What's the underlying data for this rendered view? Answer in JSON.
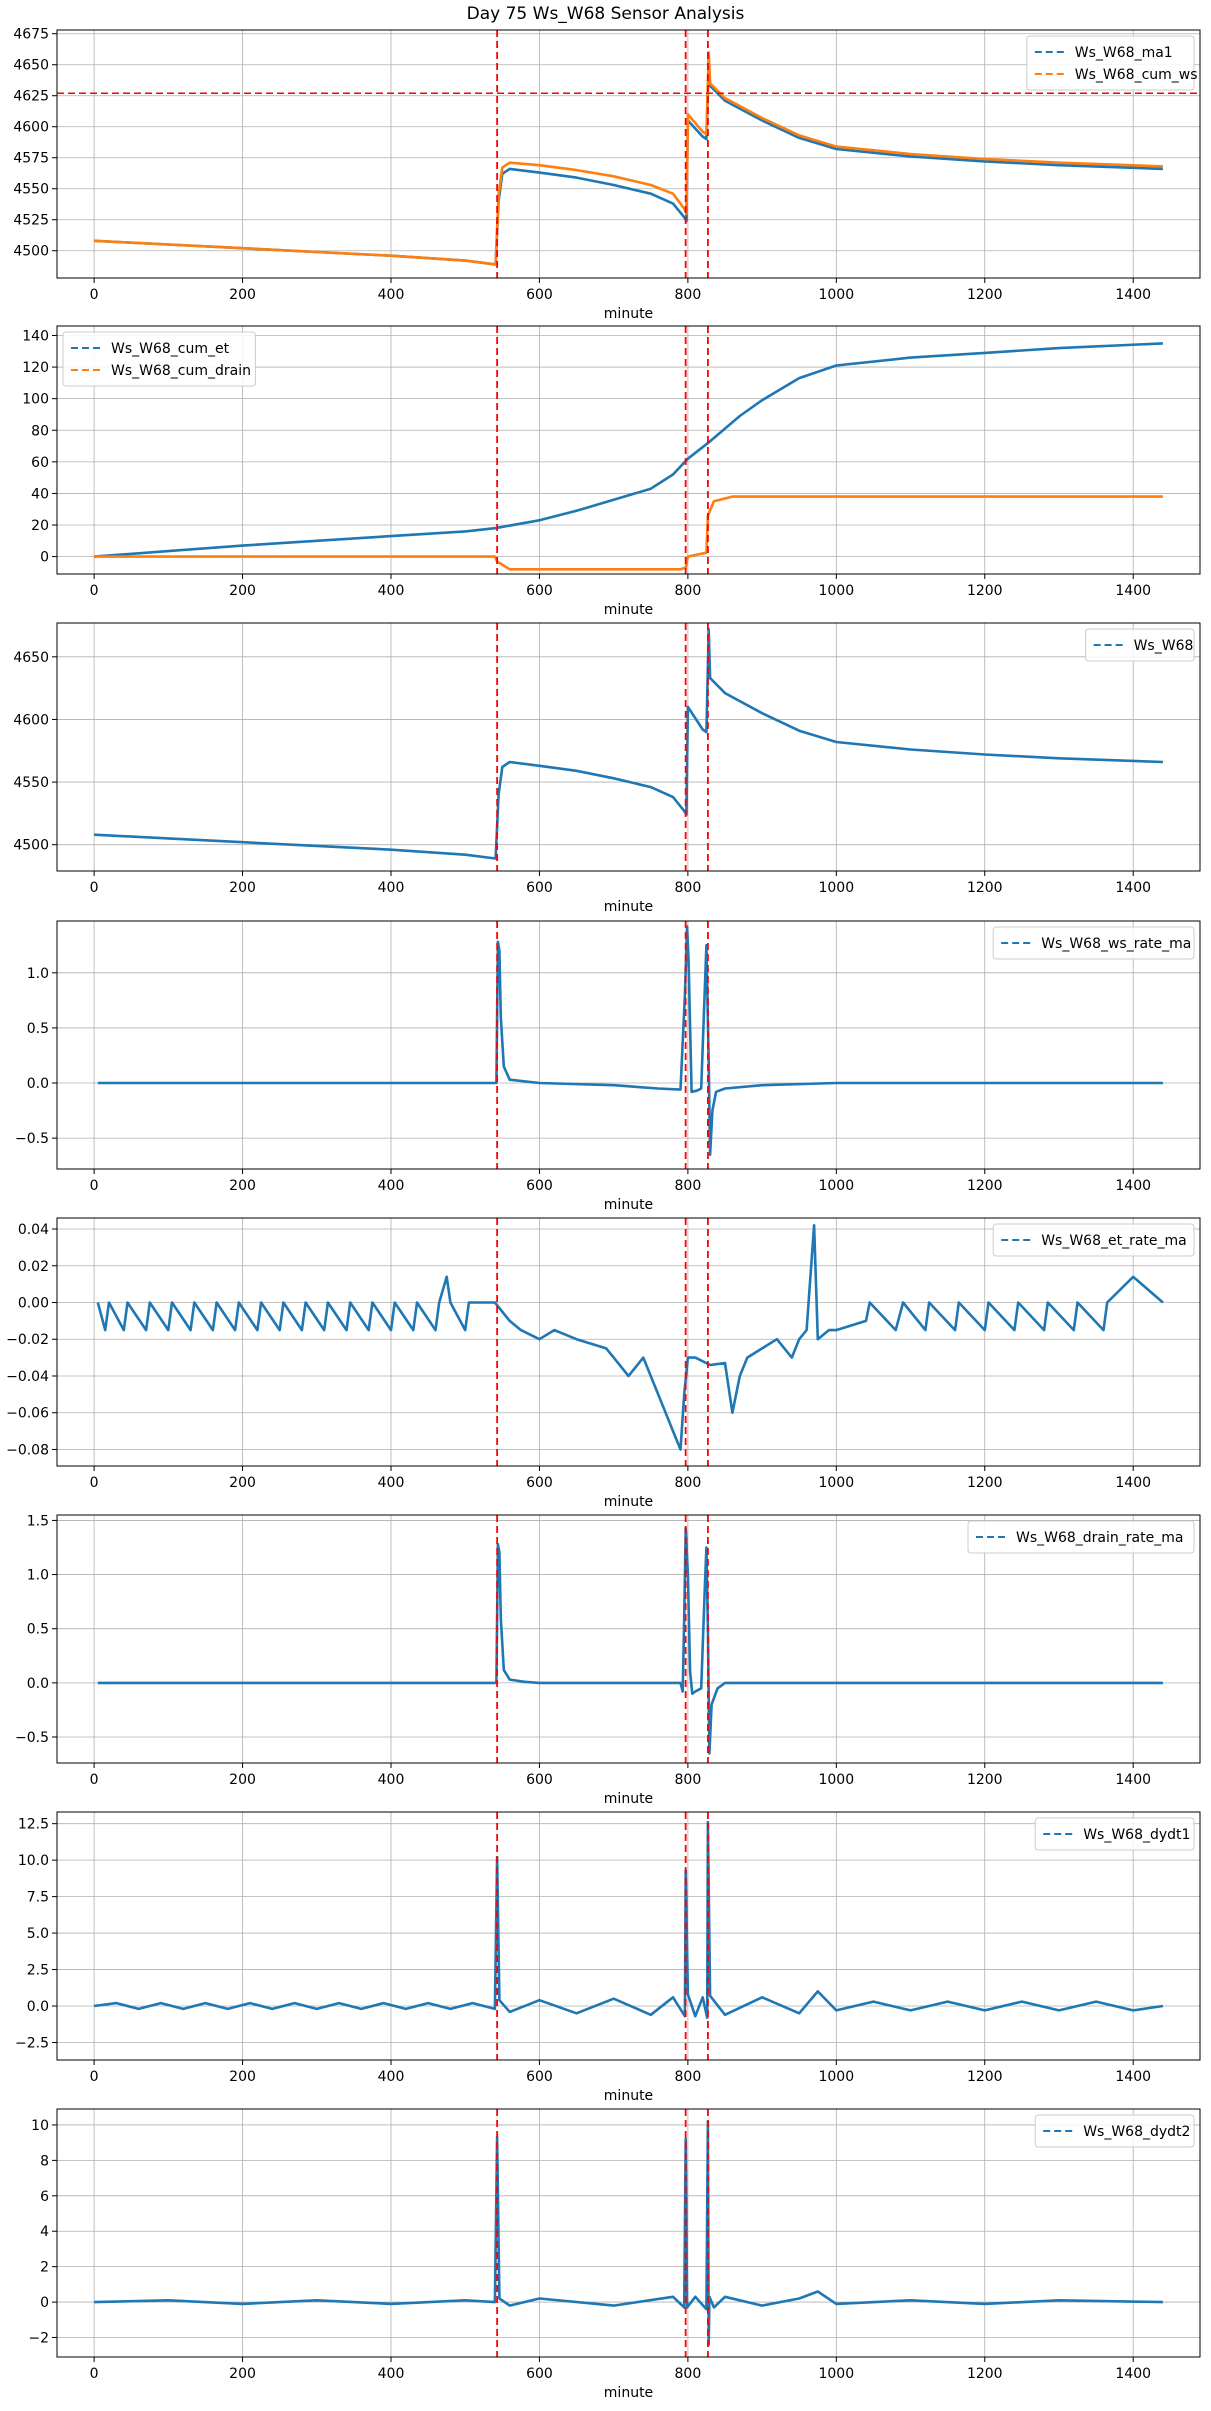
{
  "title": "Day 75 Ws_W68 Sensor Analysis",
  "colors": {
    "blue": "#1f77b4",
    "orange": "#ff7f0e",
    "event": "#ff0000",
    "grid": "#b0b0b0"
  },
  "chart_data": [
    {
      "type": "line",
      "xlabel": "minute",
      "xlim": [
        -50,
        1490
      ],
      "ylim": [
        4478,
        4678
      ],
      "xticks": [
        0,
        200,
        400,
        600,
        800,
        1000,
        1200,
        1400
      ],
      "yticks": [
        4500,
        4525,
        4550,
        4575,
        4600,
        4625,
        4650,
        4675
      ],
      "legend": "top-right",
      "vlines": [
        543,
        797,
        827
      ],
      "hline": 4627,
      "series": [
        {
          "name": "Ws_W68_ma1",
          "color": "#1f77b4",
          "x": [
            0,
            100,
            200,
            300,
            400,
            500,
            541,
            545,
            550,
            560,
            600,
            650,
            700,
            750,
            780,
            795,
            798,
            800,
            820,
            825,
            828,
            830,
            850,
            900,
            950,
            1000,
            1100,
            1200,
            1300,
            1440
          ],
          "y": [
            4508,
            4505,
            4502,
            4499,
            4496,
            4492,
            4489,
            4540,
            4562,
            4566,
            4563,
            4559,
            4553,
            4546,
            4538,
            4527,
            4524,
            4605,
            4592,
            4590,
            4650,
            4633,
            4621,
            4605,
            4591,
            4582,
            4576,
            4572,
            4569,
            4566
          ]
        },
        {
          "name": "Ws_W68_cum_ws",
          "color": "#ff7f0e",
          "x": [
            0,
            100,
            200,
            300,
            400,
            500,
            541,
            545,
            550,
            560,
            600,
            650,
            700,
            750,
            780,
            795,
            798,
            800,
            820,
            825,
            828,
            830,
            850,
            900,
            950,
            1000,
            1100,
            1200,
            1300,
            1440
          ],
          "y": [
            4508,
            4505,
            4502,
            4499,
            4496,
            4492,
            4489,
            4545,
            4567,
            4571,
            4569,
            4565,
            4560,
            4553,
            4546,
            4534,
            4530,
            4610,
            4596,
            4594,
            4660,
            4635,
            4623,
            4607,
            4593,
            4584,
            4578,
            4574,
            4571,
            4568
          ]
        }
      ]
    },
    {
      "type": "line",
      "xlabel": "minute",
      "xlim": [
        -50,
        1490
      ],
      "ylim": [
        -11,
        146
      ],
      "xticks": [
        0,
        200,
        400,
        600,
        800,
        1000,
        1200,
        1400
      ],
      "yticks": [
        0,
        20,
        40,
        60,
        80,
        100,
        120,
        140
      ],
      "legend": "top-left",
      "vlines": [
        543,
        797,
        827
      ],
      "series": [
        {
          "name": "Ws_W68_cum_et",
          "color": "#1f77b4",
          "x": [
            0,
            100,
            200,
            300,
            400,
            500,
            540,
            600,
            650,
            700,
            750,
            780,
            800,
            830,
            870,
            900,
            950,
            1000,
            1100,
            1200,
            1300,
            1440
          ],
          "y": [
            0,
            3.5,
            7,
            10,
            13,
            16,
            18,
            23,
            29,
            36,
            43,
            52,
            62,
            73,
            89,
            99,
            113,
            121,
            126,
            129,
            132,
            135
          ]
        },
        {
          "name": "Ws_W68_cum_drain",
          "color": "#ff7f0e",
          "x": [
            0,
            540,
            543,
            560,
            600,
            700,
            790,
            797,
            800,
            810,
            825,
            827,
            835,
            860,
            1000,
            1440
          ],
          "y": [
            0,
            0,
            -3,
            -8,
            -8,
            -8,
            -8,
            -7,
            0,
            1,
            2.5,
            26,
            35,
            38,
            38,
            38
          ]
        }
      ]
    },
    {
      "type": "line",
      "xlabel": "minute",
      "xlim": [
        -50,
        1490
      ],
      "ylim": [
        4479,
        4677
      ],
      "xticks": [
        0,
        200,
        400,
        600,
        800,
        1000,
        1200,
        1400
      ],
      "yticks": [
        4500,
        4550,
        4600,
        4650
      ],
      "legend": "top-right",
      "vlines": [
        543,
        797,
        827
      ],
      "series": [
        {
          "name": "Ws_W68",
          "color": "#1f77b4",
          "x": [
            0,
            100,
            200,
            300,
            400,
            500,
            541,
            545,
            550,
            560,
            600,
            650,
            700,
            750,
            780,
            795,
            798,
            800,
            820,
            825,
            828,
            830,
            850,
            900,
            950,
            1000,
            1100,
            1200,
            1300,
            1440
          ],
          "y": [
            4508,
            4505,
            4502,
            4499,
            4496,
            4492,
            4489,
            4540,
            4562,
            4566,
            4563,
            4559,
            4553,
            4546,
            4538,
            4527,
            4524,
            4610,
            4592,
            4590,
            4672,
            4633,
            4621,
            4605,
            4591,
            4582,
            4576,
            4572,
            4569,
            4566
          ]
        }
      ]
    },
    {
      "type": "line",
      "xlabel": "minute",
      "xlim": [
        -50,
        1490
      ],
      "ylim": [
        -0.78,
        1.47
      ],
      "xticks": [
        0,
        200,
        400,
        600,
        800,
        1000,
        1200,
        1400
      ],
      "yticks": [
        -0.5,
        0.0,
        0.5,
        1.0
      ],
      "legend": "top-right",
      "vlines": [
        543,
        797,
        827
      ],
      "series": [
        {
          "name": "Ws_W68_ws_rate_ma",
          "color": "#1f77b4",
          "x": [
            5,
            100,
            200,
            300,
            400,
            500,
            542,
            544,
            546,
            548,
            552,
            560,
            600,
            700,
            760,
            790,
            796,
            799,
            801,
            805,
            812,
            818,
            825,
            828,
            830,
            833,
            838,
            850,
            900,
            1000,
            1100,
            1200,
            1300,
            1440
          ],
          "y": [
            0,
            0,
            0,
            0,
            0,
            0,
            0,
            1.28,
            1.2,
            0.6,
            0.15,
            0.03,
            0,
            -0.02,
            -0.05,
            -0.06,
            0.8,
            1.42,
            1.1,
            -0.08,
            -0.07,
            -0.05,
            1.25,
            0.2,
            -0.65,
            -0.25,
            -0.08,
            -0.05,
            -0.02,
            0,
            0,
            0,
            0,
            0
          ]
        }
      ]
    },
    {
      "type": "line",
      "xlabel": "minute",
      "xlim": [
        -50,
        1490
      ],
      "ylim": [
        -0.089,
        0.046
      ],
      "xticks": [
        0,
        200,
        400,
        600,
        800,
        1000,
        1200,
        1400
      ],
      "yticks": [
        -0.08,
        -0.06,
        -0.04,
        -0.02,
        0.0,
        0.02,
        0.04
      ],
      "legend": "top-right",
      "vlines": [
        543,
        797,
        827
      ],
      "series": [
        {
          "name": "Ws_W68_et_rate_ma",
          "color": "#1f77b4",
          "x": [
            5,
            15,
            20,
            40,
            45,
            70,
            75,
            100,
            105,
            130,
            135,
            160,
            165,
            190,
            195,
            220,
            225,
            250,
            255,
            280,
            285,
            310,
            315,
            340,
            345,
            370,
            375,
            400,
            405,
            430,
            435,
            460,
            465,
            475,
            480,
            500,
            505,
            540,
            560,
            575,
            600,
            620,
            650,
            690,
            700,
            720,
            740,
            760,
            770,
            780,
            790,
            795,
            800,
            810,
            830,
            850,
            860,
            870,
            880,
            900,
            920,
            940,
            950,
            960,
            970,
            975,
            990,
            1000,
            1040,
            1045,
            1080,
            1090,
            1120,
            1125,
            1160,
            1165,
            1200,
            1205,
            1240,
            1245,
            1280,
            1285,
            1320,
            1325,
            1360,
            1365,
            1400,
            1440
          ],
          "y": [
            0,
            -0.015,
            0,
            -0.015,
            0,
            -0.015,
            0,
            -0.015,
            0,
            -0.015,
            0,
            -0.015,
            0,
            -0.015,
            0,
            -0.015,
            0,
            -0.015,
            0,
            -0.015,
            0,
            -0.015,
            0,
            -0.015,
            0,
            -0.015,
            0,
            -0.015,
            0,
            -0.015,
            0,
            -0.015,
            0,
            0.014,
            0,
            -0.015,
            0,
            0,
            -0.01,
            -0.015,
            -0.02,
            -0.015,
            -0.02,
            -0.025,
            -0.03,
            -0.04,
            -0.03,
            -0.05,
            -0.06,
            -0.07,
            -0.08,
            -0.05,
            -0.03,
            -0.03,
            -0.034,
            -0.033,
            -0.06,
            -0.04,
            -0.03,
            -0.025,
            -0.02,
            -0.03,
            -0.02,
            -0.015,
            0.042,
            -0.02,
            -0.015,
            -0.015,
            -0.01,
            0,
            -0.015,
            0,
            -0.015,
            0,
            -0.015,
            0,
            -0.015,
            0,
            -0.015,
            0,
            -0.015,
            0,
            -0.015,
            0,
            -0.015,
            0,
            0.014,
            0
          ]
        }
      ]
    },
    {
      "type": "line",
      "xlabel": "minute",
      "xlim": [
        -50,
        1490
      ],
      "ylim": [
        -0.74,
        1.55
      ],
      "xticks": [
        0,
        200,
        400,
        600,
        800,
        1000,
        1200,
        1400
      ],
      "yticks": [
        -0.5,
        0.0,
        0.5,
        1.0,
        1.5
      ],
      "legend": "top-right",
      "vlines": [
        543,
        797,
        827
      ],
      "series": [
        {
          "name": "Ws_W68_drain_rate_ma",
          "color": "#1f77b4",
          "x": [
            5,
            100,
            300,
            500,
            540,
            542,
            544,
            546,
            548,
            552,
            560,
            580,
            600,
            700,
            790,
            793,
            795,
            797,
            800,
            803,
            806,
            810,
            818,
            823,
            825,
            827,
            829,
            832,
            840,
            850,
            900,
            1000,
            1200,
            1440
          ],
          "y": [
            0,
            0,
            0,
            0,
            0,
            0,
            1.28,
            1.2,
            0.6,
            0.12,
            0.03,
            0.01,
            0,
            0,
            0,
            -0.08,
            0.6,
            1.43,
            1.0,
            0.1,
            -0.1,
            -0.08,
            -0.05,
            0.9,
            1.25,
            0.5,
            -0.65,
            -0.2,
            -0.05,
            0,
            0,
            0,
            0,
            0
          ]
        }
      ]
    },
    {
      "type": "line",
      "xlabel": "minute",
      "xlim": [
        -50,
        1490
      ],
      "ylim": [
        -3.7,
        13.3
      ],
      "xticks": [
        0,
        200,
        400,
        600,
        800,
        1000,
        1200,
        1400
      ],
      "yticks": [
        -2.5,
        0.0,
        2.5,
        5.0,
        7.5,
        10.0,
        12.5
      ],
      "legend": "top-right",
      "vlines": [
        543,
        797,
        827
      ],
      "series": [
        {
          "name": "Ws_W68_dydt1",
          "color": "#1f77b4",
          "x": [
            0,
            30,
            60,
            90,
            120,
            150,
            180,
            210,
            240,
            270,
            300,
            330,
            360,
            390,
            420,
            450,
            480,
            510,
            540,
            543,
            546,
            560,
            600,
            650,
            700,
            750,
            780,
            796,
            797,
            800,
            810,
            820,
            826,
            827,
            830,
            850,
            900,
            950,
            975,
            1000,
            1050,
            1100,
            1150,
            1200,
            1250,
            1300,
            1350,
            1400,
            1440
          ],
          "y": [
            0,
            0.2,
            -0.2,
            0.2,
            -0.2,
            0.2,
            -0.2,
            0.2,
            -0.2,
            0.2,
            -0.2,
            0.2,
            -0.2,
            0.2,
            -0.2,
            0.2,
            -0.2,
            0.2,
            -0.2,
            10.2,
            0.4,
            -0.4,
            0.4,
            -0.5,
            0.5,
            -0.6,
            0.6,
            -0.7,
            9.3,
            0.8,
            -0.7,
            0.6,
            -0.8,
            12.6,
            0.7,
            -0.6,
            0.6,
            -0.5,
            1.0,
            -0.3,
            0.3,
            -0.3,
            0.3,
            -0.3,
            0.3,
            -0.3,
            0.3,
            -0.3,
            0
          ]
        }
      ]
    },
    {
      "type": "line",
      "xlabel": "minute",
      "xlim": [
        -50,
        1490
      ],
      "ylim": [
        -3.1,
        10.9
      ],
      "xticks": [
        0,
        200,
        400,
        600,
        800,
        1000,
        1200,
        1400
      ],
      "yticks": [
        -2,
        0,
        2,
        4,
        6,
        8,
        10
      ],
      "legend": "top-right",
      "vlines": [
        543,
        797,
        827
      ],
      "series": [
        {
          "name": "Ws_W68_dydt2",
          "color": "#1f77b4",
          "x": [
            0,
            100,
            200,
            300,
            400,
            500,
            540,
            543,
            546,
            560,
            600,
            700,
            780,
            795,
            797,
            799,
            810,
            825,
            827,
            828,
            829,
            835,
            850,
            900,
            950,
            975,
            1000,
            1100,
            1200,
            1300,
            1440
          ],
          "y": [
            0,
            0.1,
            -0.1,
            0.1,
            -0.1,
            0.1,
            0,
            9.3,
            0.2,
            -0.2,
            0.2,
            -0.2,
            0.3,
            -0.3,
            9.2,
            -0.3,
            0.3,
            -0.4,
            10.2,
            -2.4,
            0.3,
            -0.3,
            0.3,
            -0.2,
            0.2,
            0.6,
            -0.1,
            0.1,
            -0.1,
            0.1,
            0
          ]
        }
      ]
    }
  ]
}
